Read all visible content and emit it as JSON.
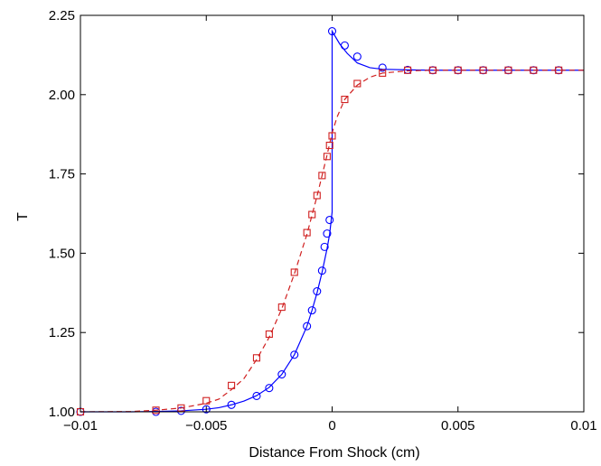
{
  "chart_data": {
    "type": "line",
    "xlabel": "Distance From Shock (cm)",
    "ylabel": "T",
    "xlim": [
      -0.01,
      0.01
    ],
    "ylim": [
      1.0,
      2.25
    ],
    "xticks": [
      -0.01,
      -0.005,
      0,
      0.005,
      0.01
    ],
    "xtick_labels": [
      "−0.01",
      "−0.005",
      "0",
      "0.005",
      "0.01"
    ],
    "yticks": [
      1.0,
      1.25,
      1.5,
      1.75,
      2.0,
      2.25
    ],
    "ytick_labels": [
      "1.00",
      "1.25",
      "1.50",
      "1.75",
      "2.00",
      "2.25"
    ],
    "grid": false,
    "series": [
      {
        "color": "#0000ff",
        "line_style": "solid",
        "marker": "circle",
        "line": {
          "x": [
            -0.01,
            -0.008,
            -0.007,
            -0.006,
            -0.005,
            -0.0045,
            -0.004,
            -0.0035,
            -0.003,
            -0.0025,
            -0.002,
            -0.0015,
            -0.001,
            -0.0008,
            -0.0006,
            -0.0004,
            -0.0002,
            -0.0001,
            0.0,
            0.0,
            0.0003,
            0.0006,
            0.001,
            0.0015,
            0.002,
            0.003,
            0.004,
            0.006,
            0.008,
            0.01
          ],
          "y": [
            1.0,
            1.0,
            1.001,
            1.003,
            1.008,
            1.013,
            1.022,
            1.034,
            1.051,
            1.077,
            1.118,
            1.18,
            1.27,
            1.32,
            1.375,
            1.44,
            1.515,
            1.56,
            1.63,
            2.2,
            2.16,
            2.13,
            2.1,
            2.085,
            2.08,
            2.078,
            2.077,
            2.077,
            2.077,
            2.077
          ]
        },
        "markers": {
          "x": [
            -0.01,
            -0.007,
            -0.006,
            -0.005,
            -0.004,
            -0.003,
            -0.0025,
            -0.002,
            -0.0015,
            -0.001,
            -0.0008,
            -0.0006,
            -0.0004,
            -0.0003,
            -0.0002,
            -0.0001,
            0.0,
            0.0005,
            0.001,
            0.002,
            0.003,
            0.004,
            0.005,
            0.006,
            0.007,
            0.008,
            0.009
          ],
          "y": [
            1.0,
            1.0,
            1.003,
            1.008,
            1.022,
            1.05,
            1.075,
            1.118,
            1.18,
            1.27,
            1.32,
            1.38,
            1.445,
            1.52,
            1.562,
            1.605,
            2.2,
            2.155,
            2.12,
            2.085,
            2.078,
            2.077,
            2.077,
            2.077,
            2.077,
            2.077,
            2.077
          ]
        }
      },
      {
        "color": "#d02020",
        "line_style": "dashed",
        "marker": "square",
        "line": {
          "x": [
            -0.01,
            -0.008,
            -0.007,
            -0.006,
            -0.005,
            -0.0045,
            -0.004,
            -0.0035,
            -0.003,
            -0.0025,
            -0.002,
            -0.0015,
            -0.001,
            -0.0008,
            -0.0006,
            -0.0004,
            -0.0002,
            0.0,
            0.0002,
            0.0005,
            0.001,
            0.0015,
            0.002,
            0.003,
            0.004,
            0.006,
            0.008,
            0.01
          ],
          "y": [
            1.0,
            1.001,
            1.005,
            1.012,
            1.027,
            1.04,
            1.07,
            1.105,
            1.165,
            1.235,
            1.325,
            1.435,
            1.56,
            1.62,
            1.68,
            1.745,
            1.81,
            1.88,
            1.93,
            1.985,
            2.03,
            2.055,
            2.068,
            2.075,
            2.077,
            2.077,
            2.077,
            2.077
          ]
        },
        "markers": {
          "x": [
            -0.01,
            -0.007,
            -0.006,
            -0.005,
            -0.004,
            -0.003,
            -0.0025,
            -0.002,
            -0.0015,
            -0.001,
            -0.0008,
            -0.0006,
            -0.0004,
            -0.0002,
            -0.0001,
            0.0,
            0.0005,
            0.001,
            0.002,
            0.003,
            0.004,
            0.005,
            0.006,
            0.007,
            0.008,
            0.009
          ],
          "y": [
            1.0,
            1.005,
            1.012,
            1.035,
            1.083,
            1.17,
            1.245,
            1.33,
            1.44,
            1.565,
            1.622,
            1.682,
            1.745,
            1.805,
            1.84,
            1.87,
            1.985,
            2.035,
            2.068,
            2.077,
            2.077,
            2.077,
            2.077,
            2.077,
            2.077,
            2.077
          ]
        }
      }
    ]
  }
}
